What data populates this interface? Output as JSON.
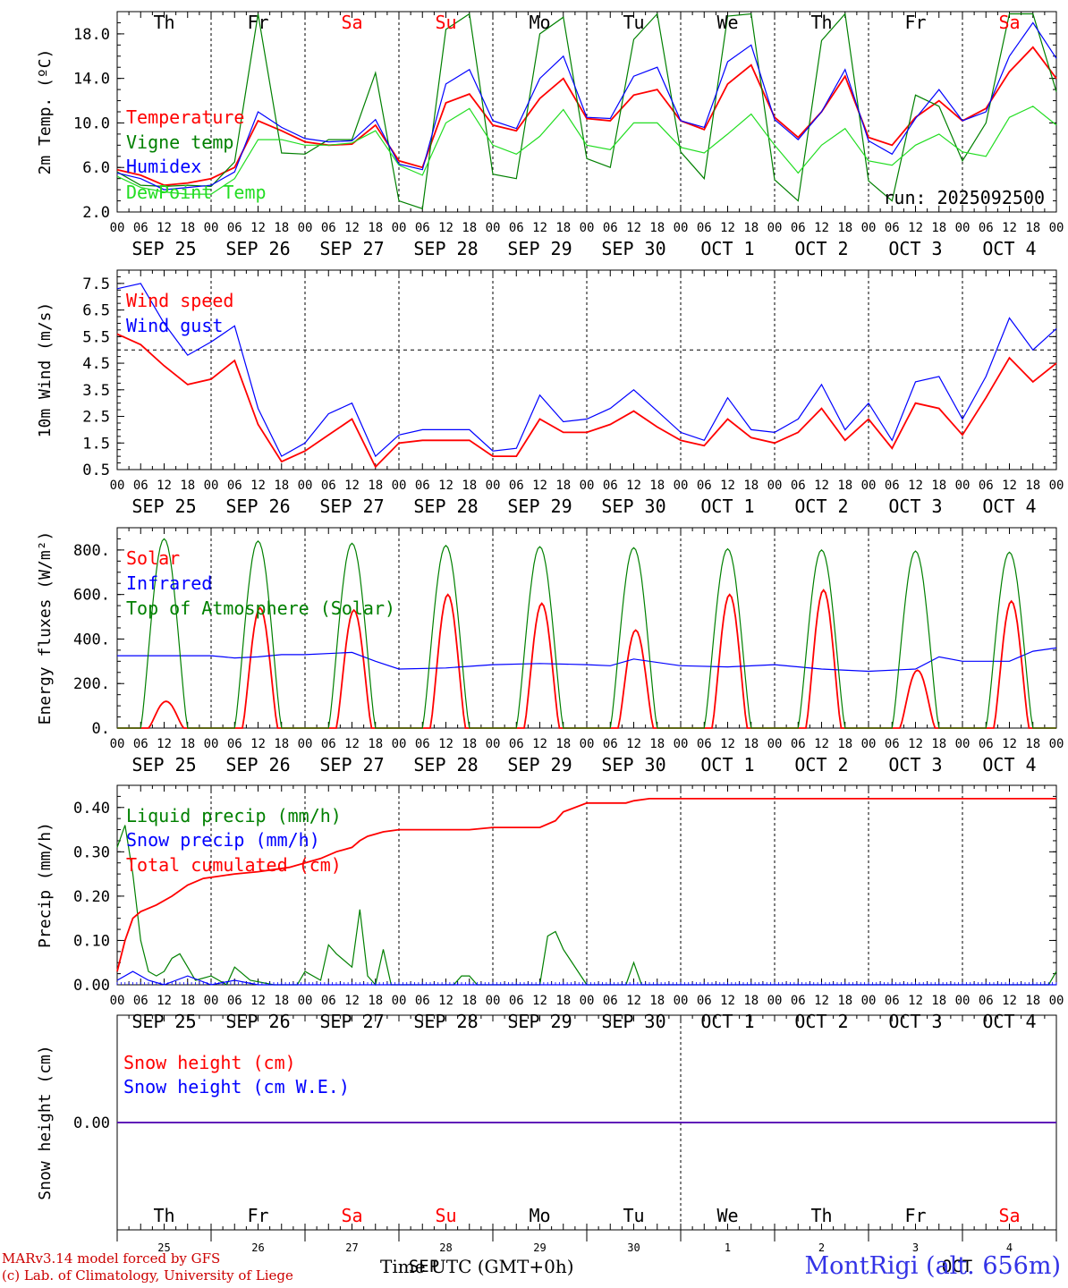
{
  "colors": {
    "red": "#ff0000",
    "blue": "#0000ff",
    "green": "#008000",
    "lime": "#22dd22",
    "weekend": "#ff0000",
    "text": "#000000"
  },
  "day_abbrev": [
    "Th",
    "Fr",
    "Sa",
    "Su",
    "Mo",
    "Tu",
    "We",
    "Th",
    "Fr",
    "Sa"
  ],
  "weekend_days": [
    2,
    3,
    9
  ],
  "day_labels": [
    "SEP 25",
    "SEP 26",
    "SEP 27",
    "SEP 28",
    "SEP 29",
    "SEP 30",
    "OCT  1",
    "OCT  2",
    "OCT  3",
    "OCT  4"
  ],
  "hour_labels": [
    "00",
    "06",
    "12",
    "18"
  ],
  "hour_end": "00",
  "bottom_day_numbers": [
    "25",
    "26",
    "27",
    "28",
    "29",
    "30",
    "1",
    "2",
    "3",
    "4"
  ],
  "bottom_month_labels": {
    "left": "SEP",
    "right": "OCT"
  },
  "run_label": "run: 2025092500",
  "x_title": "Time UTC (GMT+0h)",
  "credits": [
    "MARv3.14 model forced by GFS",
    "(c) Lab. of Climatology, University of Liege"
  ],
  "station": "MontRigi (alt. 656m)",
  "chart_data": [
    {
      "type": "line",
      "ylabel": "2m Temp. (ºC)",
      "ylim": [
        2,
        20
      ],
      "yticks": [
        "2.0",
        "6.0",
        "10.0",
        "14.0",
        "18.0"
      ],
      "x_unit": "hours since SEP 25 00 UTC",
      "xlim": [
        0,
        240
      ],
      "series": [
        {
          "name": "Temperature",
          "color": "red",
          "x": [
            0,
            6,
            12,
            18,
            24,
            30,
            36,
            42,
            48,
            54,
            60,
            66,
            72,
            78,
            84,
            90,
            96,
            102,
            108,
            114,
            120,
            126,
            132,
            138,
            144,
            150,
            156,
            162,
            168,
            174,
            180,
            186,
            192,
            198,
            204,
            210,
            216,
            222,
            228,
            234,
            240
          ],
          "values": [
            5.8,
            5.3,
            4.4,
            4.6,
            5.0,
            6.0,
            10.2,
            9.3,
            8.3,
            8.0,
            8.1,
            9.8,
            6.6,
            6.0,
            11.8,
            12.6,
            9.8,
            9.3,
            12.2,
            14.0,
            10.4,
            10.2,
            12.5,
            13.0,
            10.2,
            9.4,
            13.5,
            15.2,
            10.5,
            8.7,
            11.0,
            14.2,
            8.7,
            8.0,
            10.5,
            12.0,
            10.2,
            11.3,
            14.6,
            16.8,
            14.0
          ]
        },
        {
          "name": "Vigne temp",
          "color": "green",
          "x": [
            0,
            6,
            12,
            18,
            24,
            30,
            36,
            42,
            48,
            54,
            60,
            66,
            72,
            78,
            84,
            90,
            96,
            102,
            108,
            114,
            120,
            126,
            132,
            138,
            144,
            150,
            156,
            162,
            168,
            174,
            180,
            186,
            192,
            198,
            204,
            210,
            216,
            222,
            228,
            234,
            240
          ],
          "values": [
            5.6,
            4.4,
            4.3,
            4.4,
            4.3,
            6.5,
            19.8,
            7.3,
            7.2,
            8.5,
            8.5,
            14.5,
            3.0,
            2.3,
            18.4,
            19.8,
            5.4,
            5.0,
            18.0,
            19.5,
            6.8,
            6.0,
            17.5,
            19.8,
            7.4,
            5.0,
            19.6,
            19.8,
            4.9,
            3.0,
            17.4,
            19.8,
            4.8,
            3.0,
            12.5,
            11.5,
            6.6,
            10.0,
            19.8,
            19.8,
            12.8
          ]
        },
        {
          "name": "Humidex",
          "color": "blue",
          "x": [
            0,
            6,
            12,
            18,
            24,
            30,
            36,
            42,
            48,
            54,
            60,
            66,
            72,
            78,
            84,
            90,
            96,
            102,
            108,
            114,
            120,
            126,
            132,
            138,
            144,
            150,
            156,
            162,
            168,
            174,
            180,
            186,
            192,
            198,
            204,
            210,
            216,
            222,
            228,
            234,
            240
          ],
          "values": [
            5.5,
            5.0,
            4.0,
            4.2,
            4.4,
            5.6,
            11.0,
            9.6,
            8.6,
            8.3,
            8.4,
            10.3,
            6.3,
            5.8,
            13.5,
            14.8,
            10.2,
            9.5,
            14.0,
            16.0,
            10.5,
            10.4,
            14.2,
            15.0,
            10.2,
            9.6,
            15.5,
            17.0,
            10.3,
            8.5,
            11.0,
            14.8,
            8.4,
            7.2,
            10.4,
            13.0,
            10.2,
            11.0,
            16.0,
            19.0,
            15.8
          ]
        },
        {
          "name": "DewPoint Temp",
          "color": "lime",
          "x": [
            0,
            6,
            12,
            18,
            24,
            30,
            36,
            42,
            48,
            54,
            60,
            66,
            72,
            78,
            84,
            90,
            96,
            102,
            108,
            114,
            120,
            126,
            132,
            138,
            144,
            150,
            156,
            162,
            168,
            174,
            180,
            186,
            192,
            198,
            204,
            210,
            216,
            222,
            228,
            234,
            240
          ],
          "values": [
            5.2,
            4.2,
            3.8,
            3.6,
            3.6,
            5.0,
            8.5,
            8.5,
            8.0,
            8.0,
            8.2,
            9.3,
            6.2,
            5.3,
            10.0,
            11.3,
            8.0,
            7.2,
            8.8,
            11.2,
            8.0,
            7.6,
            10.0,
            10.0,
            7.8,
            7.3,
            9.0,
            10.8,
            8.0,
            5.5,
            8.0,
            9.5,
            6.6,
            6.2,
            8.0,
            9.0,
            7.4,
            7.0,
            10.5,
            11.5,
            9.8
          ]
        }
      ]
    },
    {
      "type": "line",
      "ylabel": "10m Wind (m/s)",
      "ylim": [
        0.5,
        8
      ],
      "reference_line": 5,
      "yticks": [
        "0.5",
        "1.5",
        "2.5",
        "3.5",
        "4.5",
        "5.5",
        "6.5",
        "7.5"
      ],
      "xlim": [
        0,
        240
      ],
      "series": [
        {
          "name": "Wind speed",
          "color": "red",
          "x": [
            0,
            6,
            12,
            18,
            24,
            30,
            36,
            42,
            48,
            54,
            60,
            66,
            72,
            78,
            84,
            90,
            96,
            102,
            108,
            114,
            120,
            126,
            132,
            138,
            144,
            150,
            156,
            162,
            168,
            174,
            180,
            186,
            192,
            198,
            204,
            210,
            216,
            222,
            228,
            234,
            240
          ],
          "values": [
            5.6,
            5.2,
            4.4,
            3.7,
            3.9,
            4.6,
            2.2,
            0.8,
            1.2,
            1.8,
            2.4,
            0.6,
            1.5,
            1.6,
            1.6,
            1.6,
            1.0,
            1.0,
            2.4,
            1.9,
            1.9,
            2.2,
            2.7,
            2.1,
            1.6,
            1.4,
            2.4,
            1.7,
            1.5,
            1.9,
            2.8,
            1.6,
            2.4,
            1.3,
            3.0,
            2.8,
            1.8,
            3.2,
            4.7,
            3.8,
            4.5
          ]
        },
        {
          "name": "Wind gust",
          "color": "blue",
          "x": [
            0,
            6,
            12,
            18,
            24,
            30,
            36,
            42,
            48,
            54,
            60,
            66,
            72,
            78,
            84,
            90,
            96,
            102,
            108,
            114,
            120,
            126,
            132,
            138,
            144,
            150,
            156,
            162,
            168,
            174,
            180,
            186,
            192,
            198,
            204,
            210,
            216,
            222,
            228,
            234,
            240
          ],
          "values": [
            7.3,
            7.5,
            6.0,
            4.8,
            5.3,
            5.9,
            2.8,
            1.0,
            1.5,
            2.6,
            3.0,
            1.0,
            1.8,
            2.0,
            2.0,
            2.0,
            1.2,
            1.3,
            3.3,
            2.3,
            2.4,
            2.8,
            3.5,
            2.7,
            1.9,
            1.6,
            3.2,
            2.0,
            1.9,
            2.4,
            3.7,
            2.0,
            3.0,
            1.6,
            3.8,
            4.0,
            2.4,
            4.0,
            6.2,
            5.0,
            5.8
          ]
        }
      ]
    },
    {
      "type": "line",
      "ylabel": "Energy fluxes (W/m²)",
      "ylim": [
        0,
        900
      ],
      "yticks": [
        "0.",
        "200.",
        "400.",
        "600.",
        "800."
      ],
      "xlim": [
        0,
        240
      ],
      "series": [
        {
          "name": "Solar",
          "color": "red",
          "peaks": [
            120,
            540,
            530,
            600,
            560,
            440,
            600,
            620,
            260,
            570
          ]
        },
        {
          "name": "Infrared",
          "color": "blue",
          "x": [
            0,
            12,
            24,
            30,
            36,
            42,
            48,
            60,
            66,
            72,
            84,
            96,
            108,
            120,
            126,
            132,
            144,
            156,
            168,
            180,
            192,
            204,
            210,
            216,
            228,
            234,
            240
          ],
          "values": [
            325,
            325,
            325,
            315,
            320,
            330,
            330,
            340,
            300,
            265,
            270,
            285,
            290,
            285,
            280,
            310,
            280,
            275,
            285,
            265,
            255,
            265,
            320,
            300,
            300,
            345,
            360
          ]
        },
        {
          "name": "Top of Atmosphere (Solar)",
          "color": "green",
          "peaks": [
            850,
            840,
            830,
            820,
            815,
            810,
            805,
            800,
            795,
            790
          ]
        }
      ]
    },
    {
      "type": "line",
      "ylabel": "Precip (mm/h)",
      "ylim": [
        0,
        0.45
      ],
      "yticks": [
        "0.00",
        "0.10",
        "0.20",
        "0.30",
        "0.40"
      ],
      "xlim": [
        0,
        240
      ],
      "series": [
        {
          "name": "Liquid precip (mm/h)",
          "color": "green",
          "x": [
            0,
            2,
            4,
            6,
            8,
            10,
            12,
            14,
            16,
            18,
            20,
            24,
            28,
            30,
            34,
            40,
            46,
            48,
            52,
            54,
            56,
            60,
            62,
            64,
            66,
            68,
            70,
            72,
            80,
            86,
            88,
            90,
            92,
            96,
            108,
            110,
            112,
            114,
            120,
            130,
            132,
            134,
            136,
            140,
            200,
            238,
            240
          ],
          "values": [
            0.31,
            0.36,
            0.25,
            0.1,
            0.03,
            0.02,
            0.03,
            0.06,
            0.07,
            0.04,
            0.01,
            0.02,
            0.0,
            0.04,
            0.01,
            0.0,
            0.0,
            0.03,
            0.01,
            0.09,
            0.07,
            0.04,
            0.17,
            0.02,
            0.0,
            0.08,
            0.0,
            0.0,
            0.0,
            0.0,
            0.02,
            0.02,
            0.0,
            0.0,
            0.0,
            0.11,
            0.12,
            0.08,
            0.0,
            0.0,
            0.05,
            0.0,
            0.0,
            0.0,
            0.0,
            0.0,
            0.03
          ]
        },
        {
          "name": "Snow precip (mm/h)",
          "color": "blue",
          "x": [
            0,
            4,
            8,
            12,
            18,
            24,
            30,
            36,
            240
          ],
          "values": [
            0.01,
            0.03,
            0.01,
            0.0,
            0.02,
            0.0,
            0.01,
            0.0,
            0.0
          ]
        },
        {
          "name": "Total cumulated (cm)",
          "color": "red",
          "x": [
            0,
            2,
            4,
            6,
            10,
            14,
            18,
            22,
            26,
            30,
            36,
            40,
            44,
            48,
            52,
            56,
            60,
            62,
            64,
            66,
            68,
            72,
            80,
            84,
            90,
            96,
            104,
            108,
            112,
            114,
            120,
            130,
            132,
            136,
            140,
            240
          ],
          "values": [
            0.03,
            0.1,
            0.15,
            0.165,
            0.18,
            0.2,
            0.225,
            0.24,
            0.245,
            0.25,
            0.255,
            0.26,
            0.265,
            0.275,
            0.285,
            0.3,
            0.31,
            0.325,
            0.335,
            0.34,
            0.345,
            0.35,
            0.35,
            0.35,
            0.35,
            0.355,
            0.355,
            0.355,
            0.37,
            0.39,
            0.41,
            0.41,
            0.415,
            0.42,
            0.42,
            0.42
          ]
        }
      ]
    },
    {
      "type": "line",
      "ylabel": "Snow height (cm)",
      "ylim": [
        -1,
        1
      ],
      "yticks": [
        "0.00"
      ],
      "xlim": [
        0,
        240
      ],
      "series": [
        {
          "name": "Snow height (cm)",
          "color": "red",
          "x": [
            0,
            240
          ],
          "values": [
            0,
            0
          ]
        },
        {
          "name": "Snow height (cm W.E.)",
          "color": "blue",
          "x": [
            0,
            240
          ],
          "values": [
            0,
            0
          ]
        }
      ]
    }
  ]
}
